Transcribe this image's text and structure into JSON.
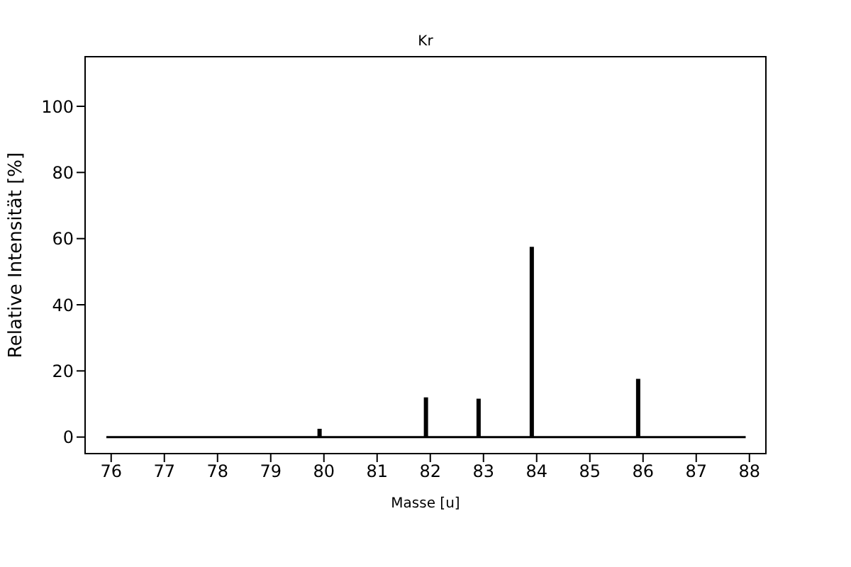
{
  "chart_data": {
    "type": "bar",
    "title": "Kr",
    "xlabel": "Masse [u]",
    "ylabel": "Relative Intensität [%]",
    "series": [
      {
        "color": "#000000",
        "x": [
          79.92,
          81.92,
          82.91,
          83.91,
          85.91
        ],
        "values": [
          2.5,
          12,
          11.6,
          57.5,
          17.6
        ]
      },
      {
        "type": "line",
        "color": "#000000",
        "x": [
          75.91,
          87.93
        ],
        "values": [
          0,
          0
        ]
      }
    ],
    "xlim": [
      75.51,
      88.31
    ],
    "xticks": [
      76,
      77,
      78,
      79,
      80,
      81,
      82,
      83,
      84,
      85,
      86,
      87,
      88
    ],
    "ylim": [
      -5,
      115
    ],
    "yticks": [
      0,
      20,
      40,
      60,
      80,
      100
    ]
  }
}
